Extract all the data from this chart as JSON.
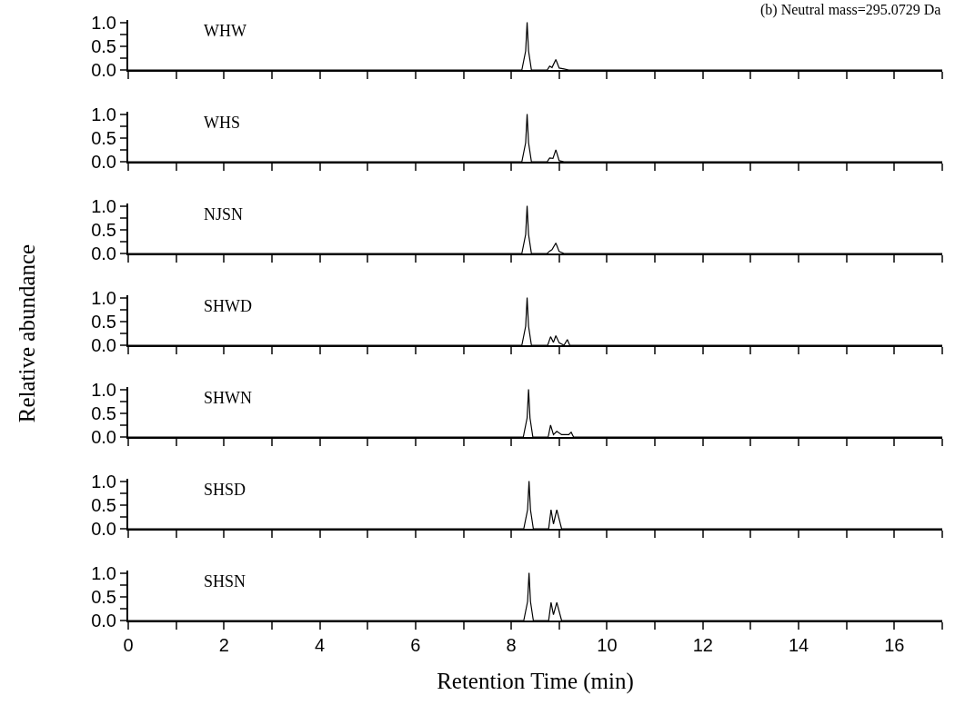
{
  "chart_data": [
    {
      "type": "line",
      "title": "(b) Neutral mass=295.0729 Da",
      "annotations": [
        "WHW"
      ],
      "x": [
        0,
        8.22,
        8.3,
        8.33,
        8.36,
        8.42,
        8.75,
        8.8,
        8.85,
        8.93,
        9.0,
        9.1,
        9.2,
        17
      ],
      "series": [
        {
          "color": "#000000",
          "values": [
            0,
            0,
            0.4,
            1.0,
            0.4,
            0,
            0,
            0.08,
            0.05,
            0.22,
            0.04,
            0.02,
            0,
            0
          ]
        }
      ],
      "xlim": [
        0,
        17
      ],
      "xticks": [
        {
          "value": 0,
          "label": null
        },
        {
          "value": 1,
          "label": null
        },
        {
          "value": 2,
          "label": null
        },
        {
          "value": 3,
          "label": null
        },
        {
          "value": 4,
          "label": null
        },
        {
          "value": 5,
          "label": null
        },
        {
          "value": 6,
          "label": null
        },
        {
          "value": 7,
          "label": null
        },
        {
          "value": 8,
          "label": null
        },
        {
          "value": 9,
          "label": null
        },
        {
          "value": 10,
          "label": null
        },
        {
          "value": 11,
          "label": null
        },
        {
          "value": 12,
          "label": null
        },
        {
          "value": 13,
          "label": null
        },
        {
          "value": 14,
          "label": null
        },
        {
          "value": 15,
          "label": null
        },
        {
          "value": 16,
          "label": null
        },
        {
          "value": 17,
          "label": null
        }
      ],
      "ylim": [
        0,
        1.05
      ],
      "yticks": [
        {
          "value": 0,
          "label": "0.0"
        },
        {
          "value": 0.25,
          "label": null
        },
        {
          "value": 0.5,
          "label": "0.5"
        },
        {
          "value": 0.75,
          "label": null
        },
        {
          "value": 1,
          "label": "1.0"
        }
      ],
      "tick_labels": "y"
    },
    {
      "type": "line",
      "annotations": [
        "WHS"
      ],
      "x": [
        0,
        8.22,
        8.3,
        8.33,
        8.36,
        8.42,
        8.75,
        8.8,
        8.87,
        8.93,
        9.0,
        9.1,
        17
      ],
      "series": [
        {
          "color": "#000000",
          "values": [
            0,
            0,
            0.4,
            1.0,
            0.4,
            0,
            0,
            0.08,
            0.07,
            0.25,
            0.02,
            0,
            0
          ]
        }
      ],
      "xlim": [
        0,
        17
      ],
      "xticks": [
        {
          "value": 0,
          "label": null
        },
        {
          "value": 1,
          "label": null
        },
        {
          "value": 2,
          "label": null
        },
        {
          "value": 3,
          "label": null
        },
        {
          "value": 4,
          "label": null
        },
        {
          "value": 5,
          "label": null
        },
        {
          "value": 6,
          "label": null
        },
        {
          "value": 7,
          "label": null
        },
        {
          "value": 8,
          "label": null
        },
        {
          "value": 9,
          "label": null
        },
        {
          "value": 10,
          "label": null
        },
        {
          "value": 11,
          "label": null
        },
        {
          "value": 12,
          "label": null
        },
        {
          "value": 13,
          "label": null
        },
        {
          "value": 14,
          "label": null
        },
        {
          "value": 15,
          "label": null
        },
        {
          "value": 16,
          "label": null
        },
        {
          "value": 17,
          "label": null
        }
      ],
      "ylim": [
        0,
        1.05
      ],
      "yticks": [
        {
          "value": 0,
          "label": "0.0"
        },
        {
          "value": 0.25,
          "label": null
        },
        {
          "value": 0.5,
          "label": "0.5"
        },
        {
          "value": 0.75,
          "label": null
        },
        {
          "value": 1,
          "label": "1.0"
        }
      ],
      "tick_labels": "y"
    },
    {
      "type": "line",
      "annotations": [
        "NJSN"
      ],
      "x": [
        0,
        8.22,
        8.3,
        8.33,
        8.36,
        8.42,
        8.75,
        8.8,
        8.85,
        8.93,
        9.0,
        9.1,
        17
      ],
      "series": [
        {
          "color": "#000000",
          "values": [
            0,
            0,
            0.4,
            1.0,
            0.4,
            0,
            0,
            0.05,
            0.08,
            0.22,
            0.04,
            0,
            0
          ]
        }
      ],
      "xlim": [
        0,
        17
      ],
      "xticks": [
        {
          "value": 0,
          "label": null
        },
        {
          "value": 1,
          "label": null
        },
        {
          "value": 2,
          "label": null
        },
        {
          "value": 3,
          "label": null
        },
        {
          "value": 4,
          "label": null
        },
        {
          "value": 5,
          "label": null
        },
        {
          "value": 6,
          "label": null
        },
        {
          "value": 7,
          "label": null
        },
        {
          "value": 8,
          "label": null
        },
        {
          "value": 9,
          "label": null
        },
        {
          "value": 10,
          "label": null
        },
        {
          "value": 11,
          "label": null
        },
        {
          "value": 12,
          "label": null
        },
        {
          "value": 13,
          "label": null
        },
        {
          "value": 14,
          "label": null
        },
        {
          "value": 15,
          "label": null
        },
        {
          "value": 16,
          "label": null
        },
        {
          "value": 17,
          "label": null
        }
      ],
      "ylim": [
        0,
        1.05
      ],
      "yticks": [
        {
          "value": 0,
          "label": "0.0"
        },
        {
          "value": 0.25,
          "label": null
        },
        {
          "value": 0.5,
          "label": "0.5"
        },
        {
          "value": 0.75,
          "label": null
        },
        {
          "value": 1,
          "label": "1.0"
        }
      ],
      "tick_labels": "y"
    },
    {
      "type": "line",
      "ylabel": "Relative abundance",
      "annotations": [
        "SHWD"
      ],
      "x": [
        0,
        8.22,
        8.3,
        8.33,
        8.36,
        8.42,
        8.76,
        8.82,
        8.88,
        8.93,
        9.0,
        9.1,
        9.17,
        9.22,
        17
      ],
      "series": [
        {
          "color": "#000000",
          "values": [
            0,
            0,
            0.4,
            1.0,
            0.4,
            0,
            0,
            0.18,
            0.06,
            0.2,
            0.05,
            0,
            0.12,
            0,
            0
          ]
        }
      ],
      "xlim": [
        0,
        17
      ],
      "xticks": [
        {
          "value": 0,
          "label": null
        },
        {
          "value": 1,
          "label": null
        },
        {
          "value": 2,
          "label": null
        },
        {
          "value": 3,
          "label": null
        },
        {
          "value": 4,
          "label": null
        },
        {
          "value": 5,
          "label": null
        },
        {
          "value": 6,
          "label": null
        },
        {
          "value": 7,
          "label": null
        },
        {
          "value": 8,
          "label": null
        },
        {
          "value": 9,
          "label": null
        },
        {
          "value": 10,
          "label": null
        },
        {
          "value": 11,
          "label": null
        },
        {
          "value": 12,
          "label": null
        },
        {
          "value": 13,
          "label": null
        },
        {
          "value": 14,
          "label": null
        },
        {
          "value": 15,
          "label": null
        },
        {
          "value": 16,
          "label": null
        },
        {
          "value": 17,
          "label": null
        }
      ],
      "ylim": [
        0,
        1.05
      ],
      "yticks": [
        {
          "value": 0,
          "label": "0.0"
        },
        {
          "value": 0.25,
          "label": null
        },
        {
          "value": 0.5,
          "label": "0.5"
        },
        {
          "value": 0.75,
          "label": null
        },
        {
          "value": 1,
          "label": "1.0"
        }
      ],
      "tick_labels": "y"
    },
    {
      "type": "line",
      "annotations": [
        "SHWN"
      ],
      "x": [
        0,
        8.25,
        8.33,
        8.36,
        8.39,
        8.45,
        8.77,
        8.82,
        8.88,
        8.95,
        9.05,
        9.2,
        9.25,
        9.3,
        17
      ],
      "series": [
        {
          "color": "#000000",
          "values": [
            0,
            0,
            0.4,
            1.0,
            0.4,
            0,
            0,
            0.25,
            0.05,
            0.12,
            0.05,
            0.05,
            0.1,
            0,
            0
          ]
        }
      ],
      "xlim": [
        0,
        17
      ],
      "xticks": [
        {
          "value": 0,
          "label": null
        },
        {
          "value": 1,
          "label": null
        },
        {
          "value": 2,
          "label": null
        },
        {
          "value": 3,
          "label": null
        },
        {
          "value": 4,
          "label": null
        },
        {
          "value": 5,
          "label": null
        },
        {
          "value": 6,
          "label": null
        },
        {
          "value": 7,
          "label": null
        },
        {
          "value": 8,
          "label": null
        },
        {
          "value": 9,
          "label": null
        },
        {
          "value": 10,
          "label": null
        },
        {
          "value": 11,
          "label": null
        },
        {
          "value": 12,
          "label": null
        },
        {
          "value": 13,
          "label": null
        },
        {
          "value": 14,
          "label": null
        },
        {
          "value": 15,
          "label": null
        },
        {
          "value": 16,
          "label": null
        },
        {
          "value": 17,
          "label": null
        }
      ],
      "ylim": [
        0,
        1.05
      ],
      "yticks": [
        {
          "value": 0,
          "label": "0.0"
        },
        {
          "value": 0.25,
          "label": null
        },
        {
          "value": 0.5,
          "label": "0.5"
        },
        {
          "value": 0.75,
          "label": null
        },
        {
          "value": 1,
          "label": "1.0"
        }
      ],
      "tick_labels": "y"
    },
    {
      "type": "line",
      "annotations": [
        "SHSD"
      ],
      "x": [
        0,
        8.26,
        8.34,
        8.37,
        8.4,
        8.46,
        8.78,
        8.83,
        8.88,
        8.95,
        9.05,
        17
      ],
      "series": [
        {
          "color": "#000000",
          "values": [
            0,
            0,
            0.4,
            1.0,
            0.4,
            0,
            0,
            0.4,
            0.1,
            0.4,
            0,
            0
          ]
        }
      ],
      "xlim": [
        0,
        17
      ],
      "xticks": [
        {
          "value": 0,
          "label": null
        },
        {
          "value": 1,
          "label": null
        },
        {
          "value": 2,
          "label": null
        },
        {
          "value": 3,
          "label": null
        },
        {
          "value": 4,
          "label": null
        },
        {
          "value": 5,
          "label": null
        },
        {
          "value": 6,
          "label": null
        },
        {
          "value": 7,
          "label": null
        },
        {
          "value": 8,
          "label": null
        },
        {
          "value": 9,
          "label": null
        },
        {
          "value": 10,
          "label": null
        },
        {
          "value": 11,
          "label": null
        },
        {
          "value": 12,
          "label": null
        },
        {
          "value": 13,
          "label": null
        },
        {
          "value": 14,
          "label": null
        },
        {
          "value": 15,
          "label": null
        },
        {
          "value": 16,
          "label": null
        },
        {
          "value": 17,
          "label": null
        }
      ],
      "ylim": [
        0,
        1.05
      ],
      "yticks": [
        {
          "value": 0,
          "label": "0.0"
        },
        {
          "value": 0.25,
          "label": null
        },
        {
          "value": 0.5,
          "label": "0.5"
        },
        {
          "value": 0.75,
          "label": null
        },
        {
          "value": 1,
          "label": "1.0"
        }
      ],
      "tick_labels": "y"
    },
    {
      "type": "line",
      "xlabel": "Retention Time (min)",
      "annotations": [
        "SHSN"
      ],
      "x": [
        0,
        8.26,
        8.34,
        8.37,
        8.4,
        8.46,
        8.78,
        8.83,
        8.88,
        8.95,
        9.05,
        17
      ],
      "series": [
        {
          "color": "#000000",
          "values": [
            0,
            0,
            0.4,
            1.0,
            0.4,
            0,
            0,
            0.38,
            0.12,
            0.38,
            0,
            0
          ]
        }
      ],
      "xlim": [
        0,
        17
      ],
      "xticks": [
        0,
        {
          "value": 1,
          "label": null
        },
        2,
        {
          "value": 3,
          "label": null
        },
        4,
        {
          "value": 5,
          "label": null
        },
        6,
        {
          "value": 7,
          "label": null
        },
        8,
        {
          "value": 9,
          "label": null
        },
        10,
        {
          "value": 11,
          "label": null
        },
        12,
        {
          "value": 13,
          "label": null
        },
        14,
        {
          "value": 15,
          "label": null
        },
        16,
        {
          "value": 17,
          "label": null
        }
      ],
      "ylim": [
        0,
        1.05
      ],
      "yticks": [
        {
          "value": 0,
          "label": "0.0"
        },
        {
          "value": 0.25,
          "label": null
        },
        {
          "value": 0.5,
          "label": "0.5"
        },
        {
          "value": 0.75,
          "label": null
        },
        {
          "value": 1,
          "label": "1.0"
        }
      ]
    }
  ]
}
